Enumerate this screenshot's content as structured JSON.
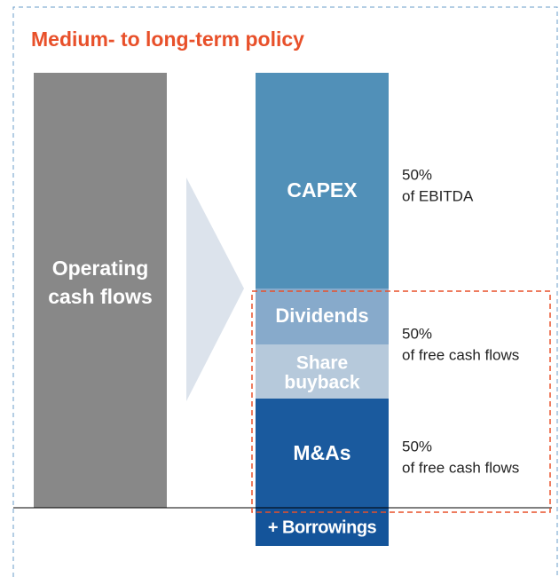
{
  "title": "Medium- to long-term policy",
  "source": {
    "lines": [
      "Operating",
      "cash flows"
    ]
  },
  "blocks": [
    {
      "lines": [
        "CAPEX"
      ]
    },
    {
      "lines": [
        "Dividends"
      ]
    },
    {
      "lines": [
        "Share",
        "buyback"
      ]
    },
    {
      "lines": [
        "M&As"
      ]
    },
    {
      "lines": [
        "+ Borrowings"
      ]
    }
  ],
  "notes": [
    {
      "lines": [
        "50%",
        "of EBITDA"
      ]
    },
    {
      "lines": [
        "50%",
        "of free cash flows"
      ]
    },
    {
      "lines": [
        "50%",
        "of free cash flows"
      ]
    }
  ]
}
